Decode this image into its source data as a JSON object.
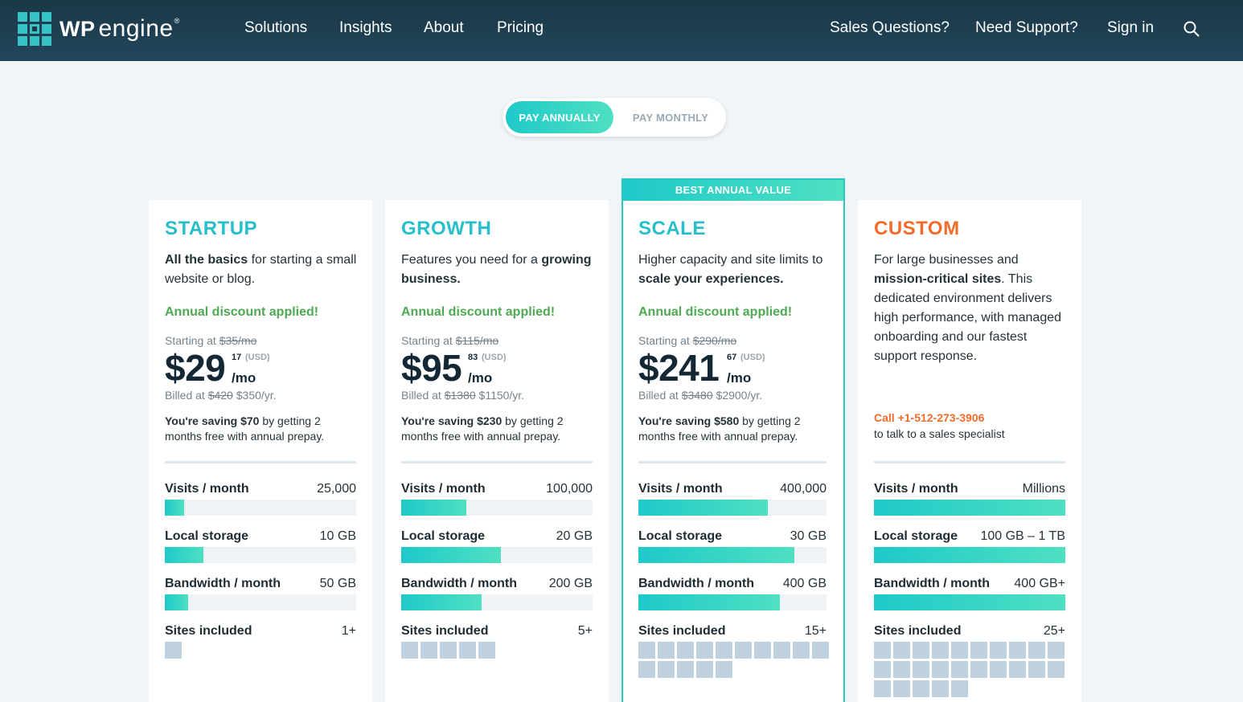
{
  "header": {
    "logo": {
      "wp": "WP",
      "engine": "engine",
      "reg": "®"
    },
    "nav_left": [
      "Solutions",
      "Insights",
      "About",
      "Pricing"
    ],
    "nav_right": [
      "Sales Questions?",
      "Need Support?",
      "Sign in"
    ],
    "search_icon": "search-icon"
  },
  "billing_toggle": {
    "annual": "PAY ANNUALLY",
    "monthly": "PAY MONTHLY",
    "selected": "annual"
  },
  "best_badge": "BEST ANNUAL VALUE",
  "colors": {
    "accent": "#26bfca",
    "discount": "#4ea952",
    "custom": "#f26b2a",
    "nav_bg": "#1b3848"
  },
  "plans": [
    {
      "name": "STARTUP",
      "desc_bold_first": "All the basics",
      "desc_rest": " for starting a small website or blog.",
      "discount": "Annual discount applied!",
      "starting_prefix": "Starting at ",
      "starting_old": "$35/mo",
      "price": "$29",
      "cents": "17",
      "usd": "(USD)",
      "per": "/mo",
      "billed_prefix": "Billed at ",
      "billed_old": "$420",
      "billed_new": " $350/yr.",
      "saving_bold": "You're saving $70",
      "saving_rest": " by getting 2 months free with annual prepay.",
      "metrics": [
        {
          "label": "Visits / month",
          "value": "25,000",
          "fill": 0.1
        },
        {
          "label": "Local storage",
          "value": "10 GB",
          "fill": 0.2
        },
        {
          "label": "Bandwidth / month",
          "value": "50 GB",
          "fill": 0.12
        }
      ],
      "sites_label": "Sites included",
      "sites_value": "1+",
      "sites_count": 1
    },
    {
      "name": "GROWTH",
      "desc_plain_first": "Features you need for a ",
      "desc_bold_end": "growing business.",
      "discount": "Annual discount applied!",
      "starting_prefix": "Starting at ",
      "starting_old": "$115/mo",
      "price": "$95",
      "cents": "83",
      "usd": "(USD)",
      "per": "/mo",
      "billed_prefix": "Billed at ",
      "billed_old": "$1380",
      "billed_new": " $1150/yr.",
      "saving_bold": "You're saving $230",
      "saving_rest": " by getting 2 months free with annual prepay.",
      "metrics": [
        {
          "label": "Visits / month",
          "value": "100,000",
          "fill": 0.34
        },
        {
          "label": "Local storage",
          "value": "20 GB",
          "fill": 0.52
        },
        {
          "label": "Bandwidth / month",
          "value": "200 GB",
          "fill": 0.42
        }
      ],
      "sites_label": "Sites included",
      "sites_value": "5+",
      "sites_count": 5
    },
    {
      "name": "SCALE",
      "desc_plain_first": "Higher capacity and site limits to ",
      "desc_bold_end": "scale your experiences.",
      "discount": "Annual discount applied!",
      "starting_prefix": "Starting at ",
      "starting_old": "$290/mo",
      "price": "$241",
      "cents": "67",
      "usd": "(USD)",
      "per": "/mo",
      "billed_prefix": "Billed at ",
      "billed_old": "$3480",
      "billed_new": " $2900/yr.",
      "saving_bold": "You're saving $580",
      "saving_rest": " by getting 2 months free with annual prepay.",
      "metrics": [
        {
          "label": "Visits / month",
          "value": "400,000",
          "fill": 0.69
        },
        {
          "label": "Local storage",
          "value": "30 GB",
          "fill": 0.83
        },
        {
          "label": "Bandwidth / month",
          "value": "400 GB",
          "fill": 0.75
        }
      ],
      "sites_label": "Sites included",
      "sites_value": "15+",
      "sites_count": 15
    },
    {
      "name": "CUSTOM",
      "desc_a": "For large businesses and ",
      "desc_bold": "mission-critical sites",
      "desc_b": ". This dedicated environment delivers high performance, with managed onboarding and our fastest support response.",
      "call_number": "Call +1-512-273-3906",
      "call_text": "to talk to a sales specialist",
      "metrics": [
        {
          "label": "Visits / month",
          "value": "Millions",
          "fill": 1.0
        },
        {
          "label": "Local storage",
          "value": "100 GB – 1 TB",
          "fill": 1.0
        },
        {
          "label": "Bandwidth / month",
          "value": "400 GB+",
          "fill": 1.0
        }
      ],
      "sites_label": "Sites included",
      "sites_value": "25+",
      "sites_count": 25
    }
  ]
}
